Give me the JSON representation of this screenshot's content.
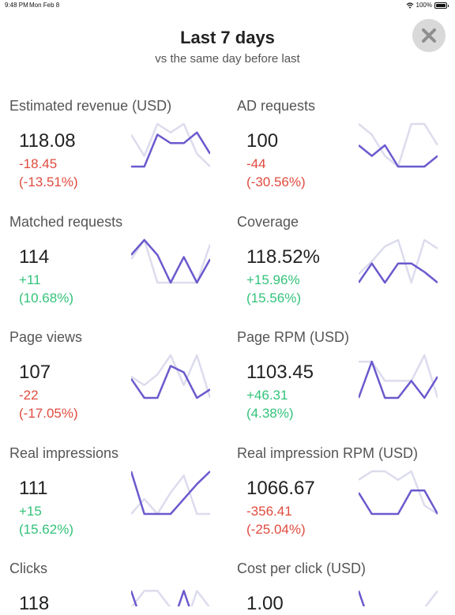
{
  "status_bar": {
    "time": "9:48 PM",
    "date": "Mon Feb 8",
    "battery": "100%"
  },
  "header": {
    "title": "Last 7 days",
    "subtitle": "vs the same day before last"
  },
  "colors": {
    "current": "#6a5acd",
    "previous": "#dcdcee",
    "negative": "#e04b3f",
    "positive": "#33c27a"
  },
  "metrics": [
    {
      "label": "Estimated revenue (USD)",
      "value": "118.08",
      "delta": "-18.45",
      "pct": "(-13.51%)",
      "trend": "neg",
      "current": [
        0.0,
        0.0,
        0.75,
        0.55,
        0.55,
        0.8,
        0.3
      ],
      "previous": [
        0.75,
        0.25,
        1.0,
        0.8,
        1.0,
        0.3,
        0.0
      ]
    },
    {
      "label": "AD requests",
      "value": "100",
      "delta": "-44",
      "pct": "(-30.56%)",
      "trend": "neg",
      "current": [
        0.5,
        0.25,
        0.5,
        0.0,
        0.0,
        0.0,
        0.25
      ],
      "previous": [
        1.0,
        0.75,
        0.25,
        0.0,
        1.0,
        1.0,
        0.5
      ]
    },
    {
      "label": "Matched requests",
      "value": "114",
      "delta": "+11",
      "pct": "(10.68%)",
      "trend": "pos",
      "current": [
        0.65,
        1.0,
        0.65,
        0.0,
        0.6,
        0.0,
        0.55
      ],
      "previous": [
        0.55,
        1.0,
        0.0,
        0.0,
        0.0,
        0.0,
        0.9
      ]
    },
    {
      "label": "Coverage",
      "value": "118.52%",
      "delta": "+15.96%",
      "pct": "(15.56%)",
      "trend": "pos",
      "current": [
        0.0,
        0.45,
        0.0,
        0.45,
        0.45,
        0.25,
        0.0
      ],
      "previous": [
        0.2,
        0.5,
        0.85,
        1.0,
        0.0,
        1.0,
        0.8
      ]
    },
    {
      "label": "Page views",
      "value": "107",
      "delta": "-22",
      "pct": "(-17.05%)",
      "trend": "neg",
      "current": [
        0.45,
        0.0,
        0.0,
        0.75,
        0.6,
        0.0,
        0.2
      ],
      "previous": [
        0.5,
        0.3,
        0.55,
        1.0,
        0.3,
        1.0,
        0.0
      ]
    },
    {
      "label": "Page RPM (USD)",
      "value": "1103.45",
      "delta": "+46.31",
      "pct": "(4.38%)",
      "trend": "pos",
      "current": [
        0.0,
        0.85,
        0.0,
        0.0,
        0.4,
        0.0,
        0.5
      ],
      "previous": [
        0.85,
        0.85,
        0.4,
        0.4,
        0.4,
        1.0,
        0.0
      ]
    },
    {
      "label": "Real impressions",
      "value": "111",
      "delta": "+15",
      "pct": "(15.62%)",
      "trend": "pos",
      "current": [
        1.0,
        0.0,
        0.0,
        0.0,
        0.35,
        0.7,
        1.0
      ],
      "previous": [
        0.0,
        0.35,
        0.0,
        0.5,
        0.9,
        0.0,
        0.0
      ]
    },
    {
      "label": "Real impression RPM (USD)",
      "value": "1066.67",
      "delta": "-356.41",
      "pct": "(-25.04%)",
      "trend": "neg",
      "current": [
        0.5,
        0.0,
        0.0,
        0.0,
        0.55,
        0.55,
        0.0
      ],
      "previous": [
        0.8,
        1.0,
        1.0,
        0.8,
        1.0,
        0.2,
        0.0
      ]
    },
    {
      "label": "Clicks",
      "value": "118",
      "delta": "",
      "pct": "",
      "trend": "neg",
      "current": [
        0.9,
        0.0,
        0.0,
        0.0,
        0.9,
        0.0,
        0.0
      ],
      "previous": [
        0.5,
        0.9,
        0.9,
        0.5,
        0.0,
        0.9,
        0.5
      ]
    },
    {
      "label": "Cost per click (USD)",
      "value": "1.00",
      "delta": "",
      "pct": "",
      "trend": "pos",
      "current": [
        0.9,
        0.0,
        0.0,
        0.0,
        0.0,
        0.0,
        0.5
      ],
      "previous": [
        0.5,
        0.5,
        0.5,
        0.5,
        0.5,
        0.5,
        0.9
      ]
    }
  ]
}
